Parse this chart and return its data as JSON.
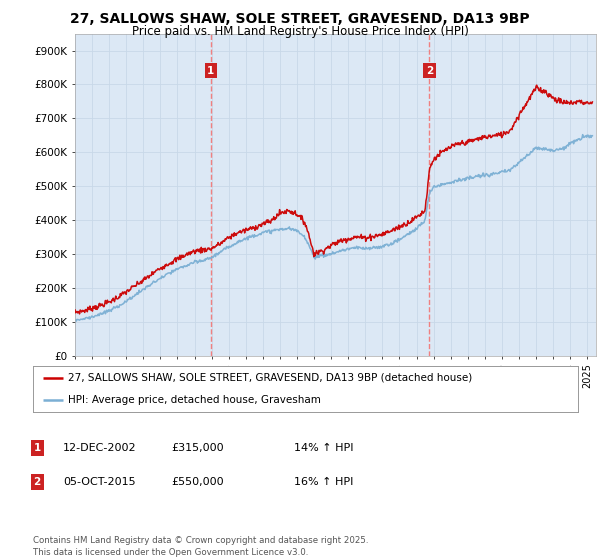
{
  "title": "27, SALLOWS SHAW, SOLE STREET, GRAVESEND, DA13 9BP",
  "subtitle": "Price paid vs. HM Land Registry's House Price Index (HPI)",
  "ylim": [
    0,
    950000
  ],
  "yticks": [
    0,
    100000,
    200000,
    300000,
    400000,
    500000,
    600000,
    700000,
    800000,
    900000
  ],
  "ytick_labels": [
    "£0",
    "£100K",
    "£200K",
    "£300K",
    "£400K",
    "£500K",
    "£600K",
    "£700K",
    "£800K",
    "£900K"
  ],
  "sale1_date": 2002.95,
  "sale1_price": 315000,
  "sale2_date": 2015.76,
  "sale2_price": 550000,
  "red_color": "#cc0000",
  "blue_color": "#7bafd4",
  "vline_color": "#f08080",
  "grid_color": "#c8d8e8",
  "plot_bg_color": "#dce8f5",
  "ann_box_color": "#cc2222",
  "legend1": "27, SALLOWS SHAW, SOLE STREET, GRAVESEND, DA13 9BP (detached house)",
  "legend2": "HPI: Average price, detached house, Gravesham",
  "footer": "Contains HM Land Registry data © Crown copyright and database right 2025.\nThis data is licensed under the Open Government Licence v3.0.",
  "xstart": 1995,
  "xend": 2025.5,
  "red_t": [
    1995.0,
    1995.5,
    1996.0,
    1996.5,
    1997.0,
    1997.5,
    1998.0,
    1998.5,
    1999.0,
    1999.5,
    2000.0,
    2000.5,
    2001.0,
    2001.5,
    2002.0,
    2002.5,
    2002.95,
    2003.5,
    2004.0,
    2004.5,
    2005.0,
    2005.5,
    2006.0,
    2006.5,
    2007.0,
    2007.5,
    2008.0,
    2008.5,
    2009.0,
    2009.5,
    2010.0,
    2010.5,
    2011.0,
    2011.5,
    2012.0,
    2012.5,
    2013.0,
    2013.5,
    2014.0,
    2014.5,
    2015.0,
    2015.5,
    2015.76,
    2016.0,
    2016.5,
    2017.0,
    2017.5,
    2018.0,
    2018.5,
    2019.0,
    2019.5,
    2020.0,
    2020.5,
    2021.0,
    2021.5,
    2022.0,
    2022.5,
    2023.0,
    2023.5,
    2024.0,
    2024.5,
    2025.0
  ],
  "red_v": [
    128000,
    132000,
    140000,
    148000,
    158000,
    172000,
    188000,
    205000,
    222000,
    240000,
    258000,
    272000,
    285000,
    298000,
    308000,
    312000,
    315000,
    330000,
    348000,
    362000,
    370000,
    378000,
    388000,
    398000,
    420000,
    428000,
    418000,
    390000,
    300000,
    310000,
    325000,
    338000,
    345000,
    350000,
    348000,
    352000,
    358000,
    368000,
    380000,
    392000,
    408000,
    428000,
    550000,
    580000,
    600000,
    615000,
    625000,
    630000,
    638000,
    645000,
    648000,
    652000,
    665000,
    710000,
    750000,
    790000,
    780000,
    760000,
    748000,
    745000,
    750000,
    745000
  ],
  "blue_t": [
    1995.0,
    1995.5,
    1996.0,
    1996.5,
    1997.0,
    1997.5,
    1998.0,
    1998.5,
    1999.0,
    1999.5,
    2000.0,
    2000.5,
    2001.0,
    2001.5,
    2002.0,
    2002.5,
    2003.0,
    2003.5,
    2004.0,
    2004.5,
    2005.0,
    2005.5,
    2006.0,
    2006.5,
    2007.0,
    2007.5,
    2008.0,
    2008.5,
    2009.0,
    2009.5,
    2010.0,
    2010.5,
    2011.0,
    2011.5,
    2012.0,
    2012.5,
    2013.0,
    2013.5,
    2014.0,
    2014.5,
    2015.0,
    2015.5,
    2015.76,
    2016.0,
    2016.5,
    2017.0,
    2017.5,
    2018.0,
    2018.5,
    2019.0,
    2019.5,
    2020.0,
    2020.5,
    2021.0,
    2021.5,
    2022.0,
    2022.5,
    2023.0,
    2023.5,
    2024.0,
    2024.5,
    2025.0
  ],
  "blue_v": [
    105000,
    108000,
    115000,
    122000,
    132000,
    145000,
    160000,
    178000,
    195000,
    212000,
    228000,
    242000,
    255000,
    265000,
    275000,
    280000,
    290000,
    305000,
    320000,
    335000,
    345000,
    355000,
    362000,
    368000,
    372000,
    375000,
    368000,
    348000,
    292000,
    295000,
    300000,
    308000,
    315000,
    318000,
    315000,
    318000,
    322000,
    330000,
    342000,
    358000,
    375000,
    398000,
    480000,
    498000,
    505000,
    512000,
    518000,
    522000,
    528000,
    532000,
    536000,
    540000,
    548000,
    570000,
    590000,
    615000,
    610000,
    605000,
    610000,
    625000,
    638000,
    648000
  ]
}
